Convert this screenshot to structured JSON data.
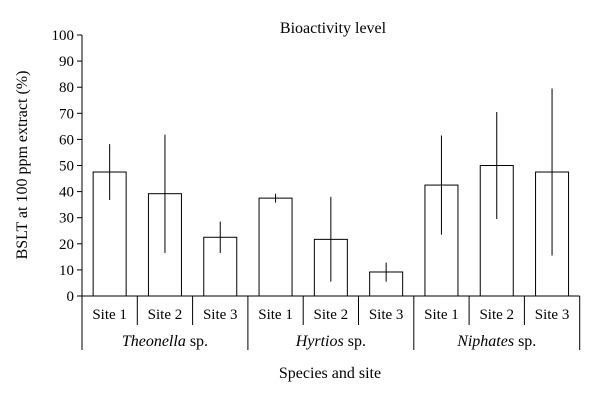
{
  "chart_data": {
    "type": "bar",
    "title": "Bioactivity level",
    "xlabel": "Species and site",
    "ylabel": "BSLT at 100 ppm extract (%)",
    "ylim": [
      0,
      100
    ],
    "yticks": [
      0,
      10,
      20,
      30,
      40,
      50,
      60,
      70,
      80,
      90,
      100
    ],
    "grid": false,
    "legend": "none",
    "groups": [
      {
        "name_italic": "Theonella",
        "name_suffix": " sp.",
        "categories": [
          "Site 1",
          "Site 2",
          "Site 3"
        ],
        "values": [
          47.5,
          39.2,
          22.5
        ],
        "error_low": [
          36.8,
          16.5,
          16.5
        ],
        "error_high": [
          58.2,
          61.8,
          28.5
        ]
      },
      {
        "name_italic": "Hyrtios",
        "name_suffix": " sp.",
        "categories": [
          "Site 1",
          "Site 2",
          "Site 3"
        ],
        "values": [
          37.5,
          21.7,
          9.2
        ],
        "error_low": [
          35.8,
          5.5,
          5.5
        ],
        "error_high": [
          39.2,
          38.0,
          12.8
        ]
      },
      {
        "name_italic": "Niphates",
        "name_suffix": " sp.",
        "categories": [
          "Site 1",
          "Site 2",
          "Site 3"
        ],
        "values": [
          42.5,
          50.0,
          47.5
        ],
        "error_low": [
          23.5,
          29.5,
          15.5
        ],
        "error_high": [
          61.5,
          70.5,
          79.5
        ]
      }
    ]
  }
}
